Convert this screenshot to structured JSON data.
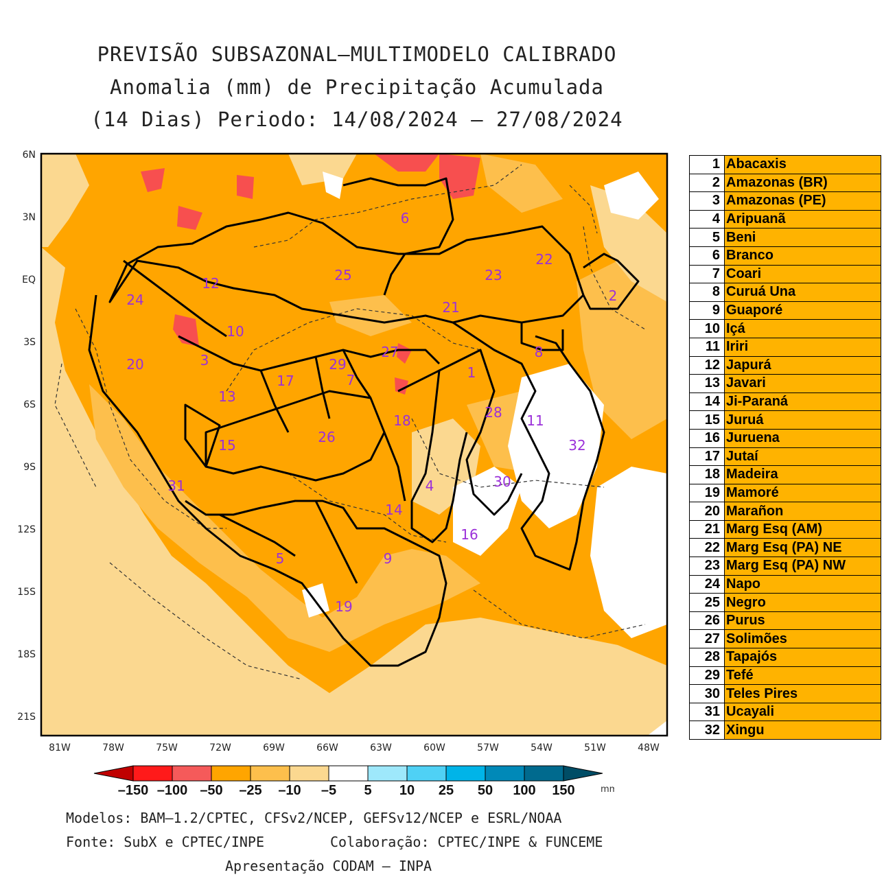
{
  "title": {
    "line1": "PREVISÃO SUBSAZONAL–MULTIMODELO CALIBRADO",
    "line2": "Anomalia (mm) de Precipitação Acumulada",
    "line3": "(14 Dias) Periodo: 14/08/2024 – 27/08/2024"
  },
  "map": {
    "lat_labels": [
      "6N",
      "3N",
      "EQ",
      "3S",
      "6S",
      "9S",
      "12S",
      "15S",
      "18S",
      "21S"
    ],
    "lon_labels": [
      "81W",
      "78W",
      "75W",
      "72W",
      "69W",
      "66W",
      "63W",
      "60W",
      "57W",
      "54W",
      "51W",
      "48W"
    ],
    "basin_numbers": [
      "1",
      "2",
      "3",
      "4",
      "5",
      "6",
      "7",
      "8",
      "9",
      "10",
      "11",
      "12",
      "13",
      "14",
      "15",
      "16",
      "17",
      "18",
      "19",
      "20",
      "21",
      "22",
      "23",
      "24",
      "25",
      "26",
      "27",
      "28",
      "29",
      "30",
      "31",
      "32"
    ],
    "colors": {
      "deep_orange": "#ffa500",
      "light_orange": "#fdbf4c",
      "pale": "#fbd890",
      "red": "#f74f4f",
      "label": "#9b30d9"
    }
  },
  "basins": [
    {
      "num": "1",
      "name": "Abacaxis"
    },
    {
      "num": "2",
      "name": "Amazonas (BR)"
    },
    {
      "num": "3",
      "name": "Amazonas (PE)"
    },
    {
      "num": "4",
      "name": "Aripuanã"
    },
    {
      "num": "5",
      "name": "Beni"
    },
    {
      "num": "6",
      "name": "Branco"
    },
    {
      "num": "7",
      "name": "Coari"
    },
    {
      "num": "8",
      "name": "Curuá Una"
    },
    {
      "num": "9",
      "name": "Guaporé"
    },
    {
      "num": "10",
      "name": "Içá"
    },
    {
      "num": "11",
      "name": "Iriri"
    },
    {
      "num": "12",
      "name": "Japurá"
    },
    {
      "num": "13",
      "name": "Javari"
    },
    {
      "num": "14",
      "name": "Ji-Paraná"
    },
    {
      "num": "15",
      "name": "Juruá"
    },
    {
      "num": "16",
      "name": "Juruena"
    },
    {
      "num": "17",
      "name": "Jutaí"
    },
    {
      "num": "18",
      "name": "Madeira"
    },
    {
      "num": "19",
      "name": "Mamoré"
    },
    {
      "num": "20",
      "name": "Marañon"
    },
    {
      "num": "21",
      "name": "Marg Esq (AM)"
    },
    {
      "num": "22",
      "name": "Marg Esq (PA) NE"
    },
    {
      "num": "23",
      "name": "Marg Esq (PA) NW"
    },
    {
      "num": "24",
      "name": "Napo"
    },
    {
      "num": "25",
      "name": "Negro"
    },
    {
      "num": "26",
      "name": "Purus"
    },
    {
      "num": "27",
      "name": "Solimões"
    },
    {
      "num": "28",
      "name": "Tapajós"
    },
    {
      "num": "29",
      "name": "Tefé"
    },
    {
      "num": "30",
      "name": "Teles Pires"
    },
    {
      "num": "31",
      "name": "Ucayali"
    },
    {
      "num": "32",
      "name": "Xingu"
    }
  ],
  "colorbar": {
    "labels": [
      "–150",
      "–100",
      "–50",
      "–25",
      "–10",
      "–5",
      "5",
      "10",
      "25",
      "50",
      "100",
      "150"
    ],
    "unit": "mm",
    "colors": [
      "#c00000",
      "#ff1a1a",
      "#f55a5a",
      "#ffa500",
      "#fdbf4c",
      "#fbd890",
      "#ffffff",
      "#9ee8fb",
      "#4fd1f5",
      "#00b4e8",
      "#0089b8",
      "#006a8e",
      "#004d66"
    ]
  },
  "footer": {
    "models": "Modelos: BAM–1.2/CPTEC, CFSv2/NCEP, GEFSv12/NCEP e ESRL/NOAA",
    "source": "Fonte: SubX e CPTEC/INPE",
    "collab": "Colaboração: CPTEC/INPE & FUNCEME",
    "presentation": "Apresentação CODAM – INPA"
  }
}
